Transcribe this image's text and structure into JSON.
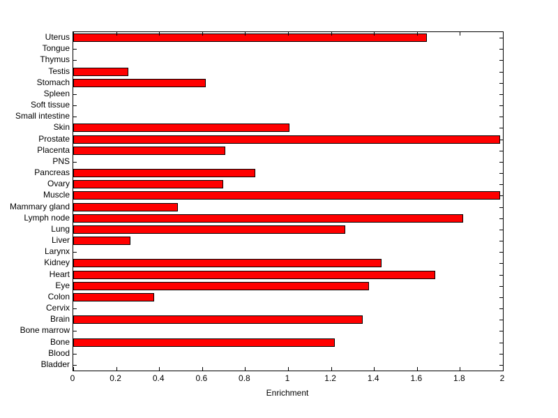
{
  "chart_data": {
    "type": "bar",
    "orientation": "horizontal",
    "title": "",
    "xlabel": "Enrichment",
    "ylabel": "",
    "xlim": [
      0,
      2
    ],
    "xticks": [
      0,
      0.2,
      0.4,
      0.6,
      0.8,
      1,
      1.2,
      1.4,
      1.6,
      1.8,
      2
    ],
    "xtick_labels": [
      "0",
      "0.2",
      "0.4",
      "0.6",
      "0.8",
      "1",
      "1.2",
      "1.4",
      "1.6",
      "1.8",
      "2"
    ],
    "categories": [
      "Uterus",
      "Tongue",
      "Thymus",
      "Testis",
      "Stomach",
      "Spleen",
      "Soft tissue",
      "Small intestine",
      "Skin",
      "Prostate",
      "Placenta",
      "PNS",
      "Pancreas",
      "Ovary",
      "Muscle",
      "Mammary gland",
      "Lymph node",
      "Lung",
      "Liver",
      "Larynx",
      "Kidney",
      "Heart",
      "Eye",
      "Colon",
      "Cervix",
      "Brain",
      "Bone marrow",
      "Bone",
      "Blood",
      "Bladder"
    ],
    "values": [
      1.64,
      0,
      0,
      0.25,
      0.61,
      0,
      0,
      0,
      1.0,
      1.98,
      0.7,
      0,
      0.84,
      0.69,
      1.98,
      0.48,
      1.81,
      1.26,
      0.26,
      0,
      1.43,
      1.68,
      1.37,
      0.37,
      0,
      1.34,
      0,
      1.21,
      0,
      0
    ],
    "bar_color": "#ff0000",
    "bar_edge_color": "#000000",
    "grid": false,
    "legend_position": "none",
    "background_color": "#ffffff",
    "axis_color": "#000000"
  }
}
